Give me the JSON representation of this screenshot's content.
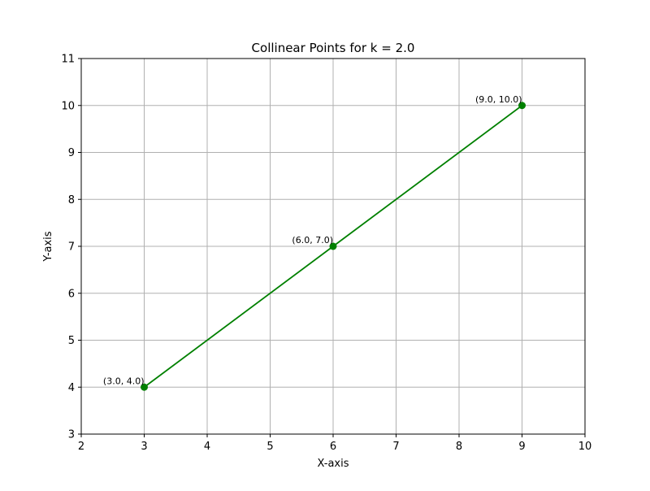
{
  "chart_data": {
    "type": "line",
    "title": "Collinear Points for k = 2.0",
    "xlabel": "X-axis",
    "ylabel": "Y-axis",
    "xlim": [
      2,
      10
    ],
    "ylim": [
      3,
      11
    ],
    "xticks": [
      2,
      3,
      4,
      5,
      6,
      7,
      8,
      9,
      10
    ],
    "yticks": [
      3,
      4,
      5,
      6,
      7,
      8,
      9,
      10,
      11
    ],
    "grid": true,
    "series": [
      {
        "x": [
          3,
          6,
          9
        ],
        "y": [
          4,
          7,
          10
        ],
        "color": "#008000",
        "marker": "circle",
        "line": true
      }
    ],
    "annotations": [
      {
        "text": "(3.0, 4.0)",
        "x": 3,
        "y": 4
      },
      {
        "text": "(6.0, 7.0)",
        "x": 6,
        "y": 7
      },
      {
        "text": "(9.0, 10.0)",
        "x": 9,
        "y": 10
      }
    ]
  }
}
